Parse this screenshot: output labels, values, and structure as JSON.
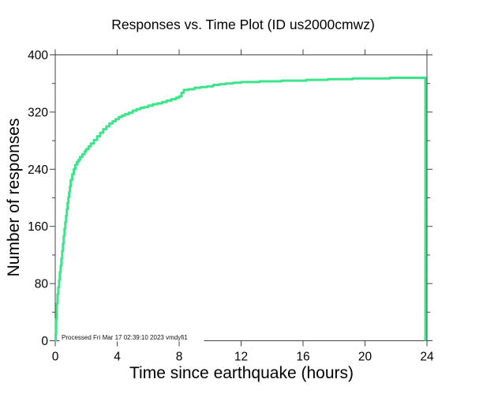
{
  "title": "Responses vs. Time Plot (ID us2000cmwz)",
  "annotation": "Processed Fri Mar 17 02:39:10 2023 vmdyfi1",
  "colors": {
    "line": "#3ce58a",
    "frame": "#444444",
    "background": "#ffffff",
    "text": "#000000"
  },
  "chart_data": {
    "type": "line",
    "style": "step-post",
    "title": "Responses vs. Time Plot (ID us2000cmwz)",
    "xlabel": "Time since earthquake (hours)",
    "ylabel": "Number of responses",
    "xlim": [
      0,
      24
    ],
    "ylim": [
      0,
      400
    ],
    "x_ticks": [
      0,
      4,
      8,
      12,
      16,
      20,
      24
    ],
    "y_ticks": [
      0,
      80,
      160,
      240,
      320,
      400
    ],
    "y_minor_ticks": [
      40,
      120,
      200,
      280,
      360
    ],
    "grid": false,
    "legend_position": "none",
    "line_color": "#3ce58a",
    "annotation": "Processed Fri Mar 17 02:39:10 2023 vmdyfi1",
    "final_value": 368,
    "closes_to_zero_at_end": true,
    "points": [
      [
        0,
        0
      ],
      [
        0.03,
        10
      ],
      [
        0.06,
        30
      ],
      [
        0.1,
        52
      ],
      [
        0.15,
        65
      ],
      [
        0.2,
        75
      ],
      [
        0.25,
        85
      ],
      [
        0.3,
        96
      ],
      [
        0.35,
        105
      ],
      [
        0.4,
        115
      ],
      [
        0.45,
        126
      ],
      [
        0.5,
        136
      ],
      [
        0.55,
        147
      ],
      [
        0.6,
        157
      ],
      [
        0.65,
        166
      ],
      [
        0.7,
        175
      ],
      [
        0.75,
        184
      ],
      [
        0.8,
        193
      ],
      [
        0.85,
        201
      ],
      [
        0.9,
        208
      ],
      [
        0.95,
        216
      ],
      [
        1.0,
        225
      ],
      [
        1.1,
        233
      ],
      [
        1.2,
        240
      ],
      [
        1.3,
        246
      ],
      [
        1.4,
        250
      ],
      [
        1.5,
        253
      ],
      [
        1.6,
        257
      ],
      [
        1.75,
        261
      ],
      [
        1.9,
        265
      ],
      [
        2.0,
        268
      ],
      [
        2.15,
        272
      ],
      [
        2.3,
        276
      ],
      [
        2.5,
        281
      ],
      [
        2.7,
        286
      ],
      [
        2.9,
        291
      ],
      [
        3.1,
        296
      ],
      [
        3.3,
        300
      ],
      [
        3.5,
        304
      ],
      [
        3.7,
        307
      ],
      [
        3.9,
        310
      ],
      [
        4.1,
        313
      ],
      [
        4.3,
        315
      ],
      [
        4.5,
        317
      ],
      [
        4.75,
        319
      ],
      [
        5.0,
        322
      ],
      [
        5.25,
        324
      ],
      [
        5.5,
        326
      ],
      [
        5.75,
        327
      ],
      [
        6.0,
        329
      ],
      [
        6.3,
        331
      ],
      [
        6.6,
        332
      ],
      [
        6.9,
        334
      ],
      [
        7.2,
        336
      ],
      [
        7.5,
        338
      ],
      [
        7.8,
        340
      ],
      [
        8.0,
        342
      ],
      [
        8.15,
        347
      ],
      [
        8.3,
        351
      ],
      [
        8.6,
        352
      ],
      [
        9.0,
        354
      ],
      [
        9.4,
        355
      ],
      [
        9.8,
        356
      ],
      [
        10.2,
        358
      ],
      [
        10.6,
        359
      ],
      [
        11.0,
        360
      ],
      [
        11.5,
        361
      ],
      [
        12.0,
        362
      ],
      [
        12.6,
        362
      ],
      [
        13.2,
        363
      ],
      [
        14.0,
        363
      ],
      [
        14.6,
        364
      ],
      [
        15.4,
        364
      ],
      [
        16.2,
        365
      ],
      [
        17.0,
        365
      ],
      [
        17.6,
        366
      ],
      [
        18.4,
        366
      ],
      [
        19.2,
        367
      ],
      [
        20.0,
        367
      ],
      [
        20.8,
        367
      ],
      [
        21.6,
        368
      ],
      [
        22.4,
        368
      ],
      [
        23.2,
        368
      ],
      [
        23.9,
        368
      ]
    ]
  }
}
